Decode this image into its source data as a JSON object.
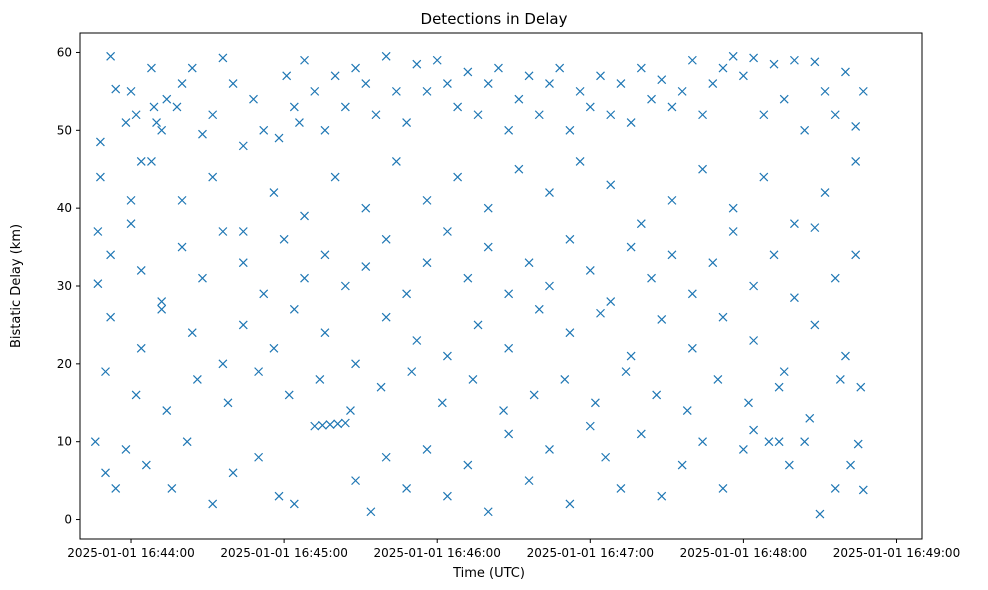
{
  "chart_data": {
    "type": "scatter",
    "title": "Detections in Delay",
    "xlabel": "Time (UTC)",
    "ylabel": "Bistatic Delay (km)",
    "x_ticks": [
      "2025-01-01 16:44:00",
      "2025-01-01 16:45:00",
      "2025-01-01 16:46:00",
      "2025-01-01 16:47:00",
      "2025-01-01 16:48:00",
      "2025-01-01 16:49:00"
    ],
    "y_ticks": [
      "0",
      "10",
      "20",
      "30",
      "40",
      "50",
      "60"
    ],
    "xlim": [
      "2025-01-01 16:43:40",
      "2025-01-01 16:49:10"
    ],
    "ylim": [
      -2.5,
      62.5
    ],
    "marker": "x",
    "color": "#1f77b4",
    "grid": false,
    "points": [
      [
        "16:43:47",
        37
      ],
      [
        "16:43:48",
        48.5
      ],
      [
        "16:43:52",
        59.5
      ],
      [
        "16:43:54",
        55.3
      ],
      [
        "16:43:58",
        51
      ],
      [
        "16:44:00",
        55
      ],
      [
        "16:44:02",
        52
      ],
      [
        "16:44:04",
        46
      ],
      [
        "16:44:08",
        58
      ],
      [
        "16:44:09",
        53
      ],
      [
        "16:44:10",
        51
      ],
      [
        "16:44:12",
        50
      ],
      [
        "16:44:14",
        54
      ],
      [
        "16:44:18",
        53
      ],
      [
        "16:44:20",
        56
      ],
      [
        "16:44:24",
        58
      ],
      [
        "16:44:28",
        49.5
      ],
      [
        "16:44:32",
        52
      ],
      [
        "16:44:36",
        59.3
      ],
      [
        "16:44:40",
        56
      ],
      [
        "16:44:44",
        48
      ],
      [
        "16:44:48",
        54
      ],
      [
        "16:44:52",
        50
      ],
      [
        "16:44:58",
        49
      ],
      [
        "16:45:01",
        57
      ],
      [
        "16:45:04",
        53
      ],
      [
        "16:45:06",
        51
      ],
      [
        "16:45:08",
        59
      ],
      [
        "16:45:12",
        55
      ],
      [
        "16:45:16",
        50
      ],
      [
        "16:45:20",
        57
      ],
      [
        "16:45:24",
        53
      ],
      [
        "16:45:28",
        58
      ],
      [
        "16:45:32",
        56
      ],
      [
        "16:45:36",
        52
      ],
      [
        "16:45:40",
        59.5
      ],
      [
        "16:45:44",
        55
      ],
      [
        "16:45:48",
        51
      ],
      [
        "16:45:52",
        58.5
      ],
      [
        "16:45:56",
        55
      ],
      [
        "16:46:00",
        59
      ],
      [
        "16:46:04",
        56
      ],
      [
        "16:46:08",
        53
      ],
      [
        "16:46:12",
        57.5
      ],
      [
        "16:46:16",
        52
      ],
      [
        "16:46:20",
        56
      ],
      [
        "16:46:24",
        58
      ],
      [
        "16:46:28",
        50
      ],
      [
        "16:46:32",
        54
      ],
      [
        "16:46:36",
        57
      ],
      [
        "16:46:40",
        52
      ],
      [
        "16:46:44",
        56
      ],
      [
        "16:46:48",
        58
      ],
      [
        "16:46:52",
        50
      ],
      [
        "16:46:56",
        55
      ],
      [
        "16:47:00",
        53
      ],
      [
        "16:47:04",
        57
      ],
      [
        "16:47:08",
        52
      ],
      [
        "16:47:12",
        56
      ],
      [
        "16:47:16",
        51
      ],
      [
        "16:47:20",
        58
      ],
      [
        "16:47:24",
        54
      ],
      [
        "16:47:28",
        56.5
      ],
      [
        "16:47:32",
        53
      ],
      [
        "16:47:36",
        55
      ],
      [
        "16:47:40",
        59
      ],
      [
        "16:47:44",
        52
      ],
      [
        "16:47:48",
        56
      ],
      [
        "16:47:52",
        58
      ],
      [
        "16:47:56",
        59.5
      ],
      [
        "16:48:00",
        57
      ],
      [
        "16:48:04",
        59.3
      ],
      [
        "16:48:08",
        52
      ],
      [
        "16:48:12",
        58.5
      ],
      [
        "16:48:16",
        54
      ],
      [
        "16:48:20",
        59
      ],
      [
        "16:48:24",
        50
      ],
      [
        "16:48:28",
        58.8
      ],
      [
        "16:48:32",
        55
      ],
      [
        "16:48:36",
        52
      ],
      [
        "16:48:40",
        57.5
      ],
      [
        "16:48:44",
        50.5
      ],
      [
        "16:48:47",
        55
      ],
      [
        "16:43:48",
        44
      ],
      [
        "16:44:00",
        41
      ],
      [
        "16:44:08",
        46
      ],
      [
        "16:44:20",
        41
      ],
      [
        "16:44:32",
        44
      ],
      [
        "16:44:44",
        37
      ],
      [
        "16:44:56",
        42
      ],
      [
        "16:45:08",
        39
      ],
      [
        "16:45:20",
        44
      ],
      [
        "16:45:32",
        40
      ],
      [
        "16:45:44",
        46
      ],
      [
        "16:45:56",
        41
      ],
      [
        "16:46:08",
        44
      ],
      [
        "16:46:20",
        40
      ],
      [
        "16:46:32",
        45
      ],
      [
        "16:46:44",
        42
      ],
      [
        "16:46:56",
        46
      ],
      [
        "16:47:08",
        43
      ],
      [
        "16:47:20",
        38
      ],
      [
        "16:47:32",
        41
      ],
      [
        "16:47:44",
        45
      ],
      [
        "16:47:56",
        40
      ],
      [
        "16:48:08",
        44
      ],
      [
        "16:48:20",
        38
      ],
      [
        "16:48:32",
        42
      ],
      [
        "16:48:44",
        46
      ],
      [
        "16:43:47",
        30.3
      ],
      [
        "16:43:52",
        34
      ],
      [
        "16:44:00",
        38
      ],
      [
        "16:44:04",
        32
      ],
      [
        "16:44:12",
        28
      ],
      [
        "16:44:20",
        35
      ],
      [
        "16:44:28",
        31
      ],
      [
        "16:44:36",
        37
      ],
      [
        "16:44:44",
        33
      ],
      [
        "16:44:52",
        29
      ],
      [
        "16:45:00",
        36
      ],
      [
        "16:45:08",
        31
      ],
      [
        "16:45:16",
        34
      ],
      [
        "16:45:24",
        30
      ],
      [
        "16:45:32",
        32.5
      ],
      [
        "16:45:40",
        36
      ],
      [
        "16:45:48",
        29
      ],
      [
        "16:45:56",
        33
      ],
      [
        "16:46:04",
        37
      ],
      [
        "16:46:12",
        31
      ],
      [
        "16:46:20",
        35
      ],
      [
        "16:46:28",
        29
      ],
      [
        "16:46:36",
        33
      ],
      [
        "16:46:44",
        30
      ],
      [
        "16:46:52",
        36
      ],
      [
        "16:47:00",
        32
      ],
      [
        "16:47:08",
        28
      ],
      [
        "16:47:16",
        35
      ],
      [
        "16:47:24",
        31
      ],
      [
        "16:47:32",
        34
      ],
      [
        "16:47:40",
        29
      ],
      [
        "16:47:48",
        33
      ],
      [
        "16:47:56",
        37
      ],
      [
        "16:48:04",
        30
      ],
      [
        "16:48:12",
        34
      ],
      [
        "16:48:20",
        28.5
      ],
      [
        "16:48:28",
        37.5
      ],
      [
        "16:48:36",
        31
      ],
      [
        "16:48:44",
        34
      ],
      [
        "16:43:52",
        26
      ],
      [
        "16:44:04",
        22
      ],
      [
        "16:44:12",
        27
      ],
      [
        "16:44:24",
        24
      ],
      [
        "16:44:36",
        20
      ],
      [
        "16:44:44",
        25
      ],
      [
        "16:44:56",
        22
      ],
      [
        "16:45:04",
        27
      ],
      [
        "16:45:16",
        24
      ],
      [
        "16:45:28",
        20
      ],
      [
        "16:45:40",
        26
      ],
      [
        "16:45:52",
        23
      ],
      [
        "16:46:04",
        21
      ],
      [
        "16:46:16",
        25
      ],
      [
        "16:46:28",
        22
      ],
      [
        "16:46:40",
        27
      ],
      [
        "16:46:52",
        24
      ],
      [
        "16:47:04",
        26.5
      ],
      [
        "16:47:16",
        21
      ],
      [
        "16:47:28",
        25.7
      ],
      [
        "16:47:40",
        22
      ],
      [
        "16:47:52",
        26
      ],
      [
        "16:48:04",
        23
      ],
      [
        "16:48:16",
        19
      ],
      [
        "16:48:28",
        25
      ],
      [
        "16:48:40",
        21
      ],
      [
        "16:48:46",
        17
      ],
      [
        "16:43:50",
        19
      ],
      [
        "16:44:02",
        16
      ],
      [
        "16:44:14",
        14
      ],
      [
        "16:44:26",
        18
      ],
      [
        "16:44:38",
        15
      ],
      [
        "16:44:50",
        19
      ],
      [
        "16:45:02",
        16
      ],
      [
        "16:45:14",
        18
      ],
      [
        "16:45:26",
        14
      ],
      [
        "16:45:38",
        17
      ],
      [
        "16:45:50",
        19
      ],
      [
        "16:46:02",
        15
      ],
      [
        "16:46:14",
        18
      ],
      [
        "16:46:26",
        14
      ],
      [
        "16:46:38",
        16
      ],
      [
        "16:46:50",
        18
      ],
      [
        "16:47:02",
        15
      ],
      [
        "16:47:14",
        19
      ],
      [
        "16:47:26",
        16
      ],
      [
        "16:47:38",
        14
      ],
      [
        "16:47:50",
        18
      ],
      [
        "16:48:02",
        15
      ],
      [
        "16:48:14",
        17
      ],
      [
        "16:48:26",
        13
      ],
      [
        "16:48:38",
        18
      ],
      [
        "16:43:46",
        10
      ],
      [
        "16:43:50",
        6
      ],
      [
        "16:43:54",
        4
      ],
      [
        "16:43:58",
        9
      ],
      [
        "16:44:06",
        7
      ],
      [
        "16:44:16",
        4
      ],
      [
        "16:44:22",
        10
      ],
      [
        "16:44:32",
        2
      ],
      [
        "16:44:40",
        6
      ],
      [
        "16:44:50",
        8
      ],
      [
        "16:44:58",
        3
      ],
      [
        "16:45:04",
        2
      ],
      [
        "16:45:12",
        12
      ],
      [
        "16:45:15",
        12.1
      ],
      [
        "16:45:18",
        12.2
      ],
      [
        "16:45:21",
        12.3
      ],
      [
        "16:45:24",
        12.4
      ],
      [
        "16:45:28",
        5
      ],
      [
        "16:45:34",
        1
      ],
      [
        "16:45:40",
        8
      ],
      [
        "16:45:48",
        4
      ],
      [
        "16:45:56",
        9
      ],
      [
        "16:46:04",
        3
      ],
      [
        "16:46:12",
        7
      ],
      [
        "16:46:20",
        1
      ],
      [
        "16:46:28",
        11
      ],
      [
        "16:46:36",
        5
      ],
      [
        "16:46:44",
        9
      ],
      [
        "16:46:52",
        2
      ],
      [
        "16:47:00",
        12
      ],
      [
        "16:47:06",
        8
      ],
      [
        "16:47:12",
        4
      ],
      [
        "16:47:20",
        11
      ],
      [
        "16:47:28",
        3
      ],
      [
        "16:47:36",
        7
      ],
      [
        "16:47:44",
        10
      ],
      [
        "16:47:52",
        4
      ],
      [
        "16:48:00",
        9
      ],
      [
        "16:48:04",
        11.5
      ],
      [
        "16:48:10",
        10
      ],
      [
        "16:48:14",
        10
      ],
      [
        "16:48:18",
        7
      ],
      [
        "16:48:24",
        10
      ],
      [
        "16:48:30",
        0.7
      ],
      [
        "16:48:36",
        4
      ],
      [
        "16:48:42",
        7
      ],
      [
        "16:48:45",
        9.7
      ],
      [
        "16:48:47",
        3.8
      ]
    ]
  }
}
